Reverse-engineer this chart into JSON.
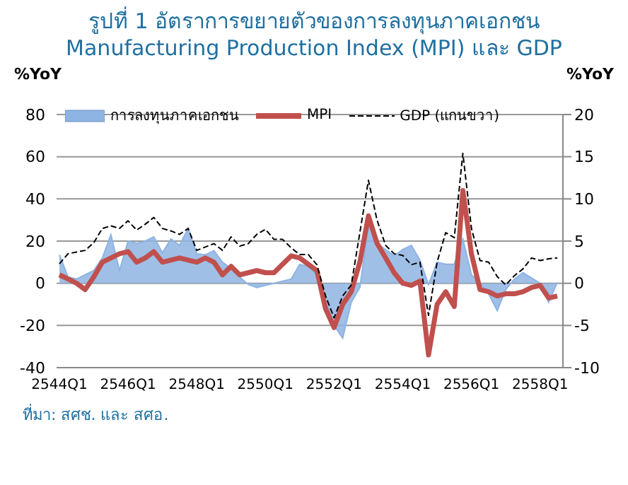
{
  "chart_data": {
    "type": "line",
    "title": "รูปที่ 1 อัตราการขยายตัวของการลงทุนภาคเอกชน",
    "subtitle": "Manufacturing Production Index (MPI) และ GDP",
    "ylabel": "%YoY",
    "y2label": "%YoY",
    "categories": [
      "2544Q1",
      null,
      null,
      null,
      null,
      null,
      null,
      null,
      "2546Q1",
      null,
      null,
      null,
      null,
      null,
      null,
      null,
      "2548Q1",
      null,
      null,
      null,
      null,
      null,
      null,
      null,
      "2550Q1",
      null,
      null,
      null,
      null,
      null,
      null,
      null,
      "2552Q1",
      null,
      null,
      null,
      null,
      null,
      null,
      null,
      "2554Q1",
      null,
      null,
      null,
      null,
      null,
      null,
      null,
      "2556Q1",
      null,
      null,
      null,
      null,
      null,
      null,
      null,
      "2558Q1",
      null,
      null
    ],
    "series": [
      {
        "name": "การลงทุนภาคเอกชน",
        "type": "area",
        "color": "#8eb4e3",
        "values": [
          13.5,
          3,
          2,
          4,
          6,
          12,
          23,
          6,
          20,
          19,
          20,
          22,
          14.5,
          21,
          18,
          26,
          14,
          13.5,
          15.5,
          10,
          7,
          3,
          -0.6,
          -2,
          -1,
          0,
          1,
          2,
          9,
          8,
          4,
          -8,
          -20,
          -26,
          -9,
          -2,
          27,
          19,
          16,
          13,
          16,
          18,
          11,
          -0.6,
          10,
          9,
          9,
          21,
          4,
          0,
          -5,
          -13,
          -3,
          2,
          5,
          2.5,
          0,
          -9,
          0.4
        ]
      },
      {
        "name": "MPI",
        "type": "line",
        "color": "#c0504d",
        "values": [
          4,
          2,
          0,
          -3,
          3,
          10,
          12,
          14,
          15,
          10,
          12,
          15,
          10,
          11,
          12,
          11,
          10,
          12,
          10,
          4,
          8,
          4,
          5,
          6,
          5,
          5,
          9,
          13,
          12,
          9,
          6,
          -12,
          -21,
          -10,
          -4,
          10,
          32,
          19,
          12,
          5,
          0,
          -1,
          1,
          -34,
          -10,
          -4,
          -11,
          44,
          14,
          -3,
          -4,
          -6,
          -5,
          -5,
          -4,
          -2,
          -1,
          -7,
          -6
        ]
      },
      {
        "name": "GDP (แกนขวา)",
        "type": "line",
        "axis": "y2",
        "color": "#000000",
        "line_style": "dashed",
        "values": [
          2.3,
          3.5,
          3.7,
          3.9,
          4.8,
          6.5,
          6.8,
          6.5,
          7.4,
          6.3,
          7,
          7.8,
          6.5,
          6.2,
          5.8,
          6.5,
          3.9,
          4.3,
          4.7,
          3.9,
          5.5,
          4.4,
          4.7,
          5.8,
          6.4,
          5.2,
          5.2,
          4.2,
          3.4,
          3.4,
          2.2,
          -1.5,
          -4.1,
          -1.5,
          -0.2,
          6,
          12.2,
          7.5,
          4.5,
          3.5,
          3.3,
          2.2,
          2.5,
          -3.8,
          2.5,
          6,
          5.4,
          15.4,
          6.5,
          2.7,
          2.5,
          0.8,
          -0.2,
          0.9,
          1.7,
          3,
          2.7,
          2.9,
          3
        ]
      }
    ],
    "ylim": [
      -40,
      80
    ],
    "yticks": [
      -40,
      -20,
      0,
      20,
      40,
      60,
      80
    ],
    "y2lim": [
      -10,
      20
    ],
    "y2ticks": [
      -10,
      -5,
      0,
      5,
      10,
      15,
      20
    ],
    "grid": "y",
    "legend": "top",
    "marker": "none",
    "annotations": [
      "ที่มา: สศช. และ สศอ."
    ]
  }
}
